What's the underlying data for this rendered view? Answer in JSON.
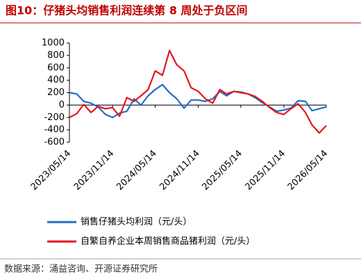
{
  "chart_data": {
    "type": "line",
    "title": "图10：仔猪头均销售利润连续第 8 周处于负区间",
    "source": "数据来源：涌益咨询、开源证券研究所",
    "x": [
      "2023/05/14",
      "2023/06/14",
      "2023/07/14",
      "2023/08/14",
      "2023/09/14",
      "2023/10/14",
      "2023/11/14",
      "2023/12/14",
      "2024/01/14",
      "2024/02/14",
      "2024/03/14",
      "2024/04/14",
      "2024/05/14",
      "2024/06/14",
      "2024/07/14",
      "2024/08/14",
      "2024/09/14",
      "2024/10/14",
      "2024/11/14",
      "2024/12/14",
      "2025/01/14",
      "2025/02/14",
      "2025/03/14",
      "2025/04/14",
      "2025/05/14",
      "2025/06/14",
      "2025/07/14",
      "2025/08/14",
      "2025/09/14",
      "2025/10/14",
      "2025/11/14",
      "2025/12/14",
      "2026/01/14",
      "2026/02/14",
      "2026/03/14",
      "2026/04/14",
      "2026/05/14"
    ],
    "series": [
      {
        "name": "销售仔猪头均利润（元/头）",
        "color": "#1f6fbf",
        "values": [
          200,
          180,
          60,
          30,
          -30,
          -150,
          -200,
          -130,
          -100,
          100,
          0,
          150,
          250,
          330,
          200,
          100,
          -50,
          80,
          80,
          60,
          100,
          220,
          150,
          220,
          210,
          180,
          120,
          40,
          -30,
          -100,
          -80,
          -50,
          70,
          60,
          -90,
          -60,
          -30
        ]
      },
      {
        "name": "自繁自养企业本周销售商品猪利润（元/头）",
        "color": "#e8141c",
        "values": [
          -200,
          -140,
          10,
          -120,
          -20,
          -60,
          -40,
          -180,
          120,
          60,
          150,
          250,
          550,
          480,
          880,
          650,
          550,
          280,
          220,
          100,
          30,
          250,
          180,
          220,
          200,
          180,
          140,
          60,
          -40,
          -120,
          -150,
          -60,
          20,
          -120,
          -320,
          -450,
          -330
        ]
      }
    ],
    "xlim": [
      "2023/05/14",
      "2026/05/14"
    ],
    "xticks": [
      "2023/05/14",
      "2023/11/14",
      "2024/05/14",
      "2024/11/14",
      "2025/05/14",
      "2025/11/14",
      "2026/05/14"
    ],
    "ylim": [
      -600,
      1000
    ],
    "yticks": [
      -600,
      -400,
      -200,
      0,
      200,
      400,
      600,
      800,
      1000
    ]
  }
}
